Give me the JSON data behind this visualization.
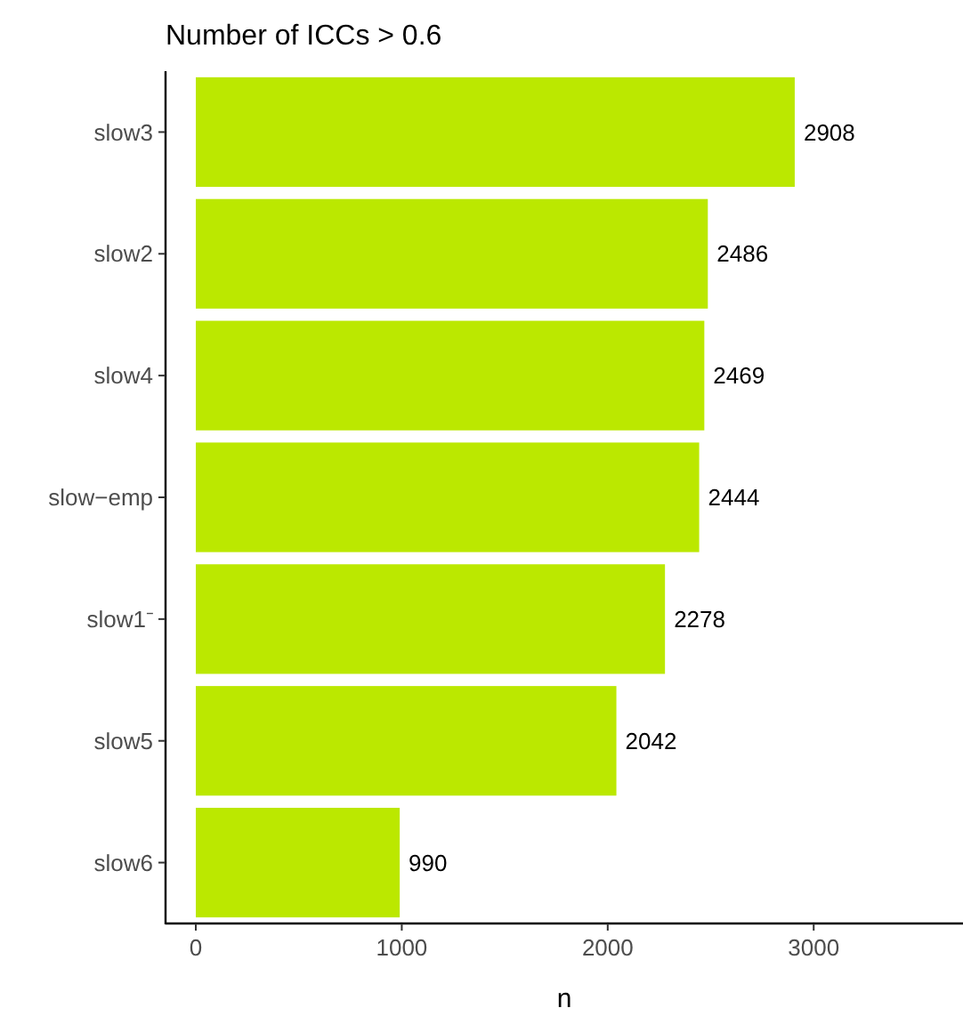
{
  "chart_data": {
    "type": "bar",
    "orientation": "horizontal",
    "title": "Number of ICCs > 0.6",
    "xlabel": "n",
    "categories": [
      "slow3",
      "slow2",
      "slow4",
      "slow−emp",
      "slow1⁻",
      "slow5",
      "slow6"
    ],
    "values": [
      2908,
      2486,
      2469,
      2444,
      2278,
      2042,
      990
    ],
    "color": "#bbe800",
    "xlim": [
      -147,
      3725
    ],
    "xticks": [
      0,
      1000,
      2000,
      3000
    ],
    "data_labels": true,
    "grid": false
  }
}
